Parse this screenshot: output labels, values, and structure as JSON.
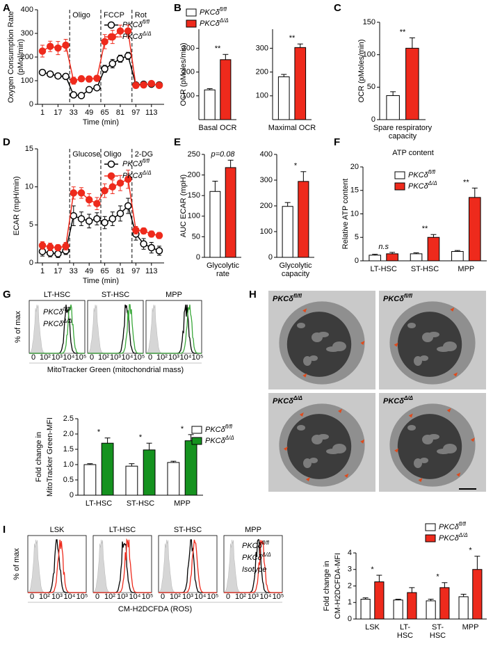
{
  "chart_data": [
    {
      "type": "line",
      "panel": "A",
      "ylabel": [
        "Oxygen Consumption Rate",
        "(pMol/min)"
      ],
      "xlabel": "Time (min)",
      "x": [
        1,
        9,
        17,
        25,
        33,
        41,
        49,
        57,
        65,
        73,
        81,
        89,
        97,
        105,
        113,
        121
      ],
      "xlim": [
        -4,
        126
      ],
      "xticks": [
        1,
        17,
        33,
        49,
        65,
        81,
        97,
        113
      ],
      "ylim": [
        0,
        400
      ],
      "yticks": [
        0,
        100,
        200,
        300,
        400
      ],
      "events": [
        {
          "x": 29,
          "label": "Oligo"
        },
        {
          "x": 61,
          "label": "FCCP"
        },
        {
          "x": 93,
          "label": "Rot"
        }
      ],
      "series": [
        {
          "name": "PKCδ",
          "name_sup": "fl/fl",
          "color": "#000000",
          "marker": "open-circle",
          "values": [
            135,
            128,
            120,
            118,
            40,
            37,
            62,
            70,
            150,
            172,
            193,
            205,
            82,
            85,
            85,
            82
          ],
          "errors": [
            10,
            8,
            8,
            8,
            6,
            6,
            10,
            10,
            15,
            18,
            15,
            15,
            8,
            8,
            8,
            8
          ]
        },
        {
          "name": "PKCδ",
          "name_sup": "Δ/Δ",
          "color": "#ee2a1c",
          "marker": "filled-circle",
          "values": [
            225,
            245,
            238,
            250,
            100,
            108,
            107,
            110,
            265,
            285,
            310,
            310,
            80,
            82,
            88,
            80
          ],
          "errors": [
            25,
            22,
            28,
            25,
            15,
            12,
            12,
            12,
            30,
            28,
            25,
            25,
            12,
            10,
            8,
            10
          ]
        }
      ]
    },
    {
      "type": "bar",
      "panel": "B",
      "ylabel": "OCR (pMoles/min)",
      "categories": [
        "Basal OCR"
      ],
      "ylim": [
        0,
        380
      ],
      "yticks": [
        100,
        200,
        300
      ],
      "series": [
        {
          "name": "PKCδ",
          "name_sup": "fl/fl",
          "color": "#ffffff",
          "values": [
            125
          ],
          "errors": [
            5
          ]
        },
        {
          "name": "PKCδ",
          "name_sup": "Δ/Δ",
          "color": "#ee2a1c",
          "values": [
            252
          ],
          "errors": [
            22
          ]
        }
      ],
      "annotations": [
        "**"
      ]
    },
    {
      "type": "bar",
      "categories": [
        "Maximal OCR"
      ],
      "ylim": [
        0,
        380
      ],
      "yticks": [
        100,
        200,
        300
      ],
      "series": [
        {
          "color": "#ffffff",
          "values": [
            180
          ],
          "errors": [
            10
          ]
        },
        {
          "color": "#ee2a1c",
          "values": [
            303
          ],
          "errors": [
            15
          ]
        }
      ],
      "annotations": [
        "**"
      ]
    },
    {
      "type": "bar",
      "panel": "C",
      "ylabel": "OCR (pMoles/min)",
      "categories": [
        [
          "Spare respiratory",
          "capacity"
        ]
      ],
      "ylim": [
        0,
        150
      ],
      "yticks": [
        0,
        50,
        100,
        150
      ],
      "series": [
        {
          "color": "#ffffff",
          "values": [
            37
          ],
          "errors": [
            6
          ]
        },
        {
          "color": "#ee2a1c",
          "values": [
            110
          ],
          "errors": [
            16
          ]
        }
      ],
      "annotations": [
        "**"
      ]
    },
    {
      "type": "line",
      "panel": "D",
      "ylabel": [
        "ECAR (mpH/min)"
      ],
      "xlabel": "Time (min)",
      "x": [
        1,
        9,
        17,
        25,
        33,
        41,
        49,
        57,
        65,
        73,
        81,
        89,
        97,
        105,
        113,
        121
      ],
      "xlim": [
        -4,
        126
      ],
      "xticks": [
        1,
        17,
        33,
        49,
        65,
        81,
        97,
        113
      ],
      "ylim": [
        0,
        15
      ],
      "yticks": [
        0,
        5,
        10,
        15
      ],
      "events": [
        {
          "x": 29,
          "label": "Glucose"
        },
        {
          "x": 61,
          "label": "Oligo"
        },
        {
          "x": 93,
          "label": "2-DG"
        }
      ],
      "series": [
        {
          "name": "PKCδ",
          "name_sup": "fl/fl",
          "color": "#000000",
          "marker": "open-circle",
          "values": [
            1.5,
            1.3,
            1.2,
            1.6,
            6.2,
            5.8,
            5.5,
            5.8,
            5.3,
            5.8,
            6.5,
            7.5,
            3.8,
            2.5,
            2.0,
            1.6
          ],
          "errors": [
            0.6,
            0.5,
            0.5,
            0.5,
            1.3,
            0.9,
            0.9,
            0.8,
            0.8,
            0.9,
            1.0,
            1.0,
            0.8,
            0.7,
            0.7,
            0.6
          ]
        },
        {
          "name": "PKCδ",
          "name_sup": "Δ/Δ",
          "color": "#ee2a1c",
          "marker": "filled-circle",
          "values": [
            2.3,
            2.1,
            2.0,
            2.2,
            9.2,
            9.2,
            8.3,
            7.8,
            9.5,
            10.0,
            10.5,
            11.0,
            4.3,
            4.2,
            3.8,
            3.6
          ],
          "errors": [
            0.5,
            0.5,
            0.4,
            0.5,
            0.8,
            0.7,
            0.8,
            0.8,
            0.9,
            0.9,
            1.0,
            1.2,
            0.5,
            0.4,
            0.4,
            0.4
          ]
        }
      ]
    },
    {
      "type": "bar",
      "panel": "E",
      "ylabel": "AUC ECAR (mpH)",
      "categories": [
        [
          "Glycolytic",
          "rate"
        ]
      ],
      "ylim": [
        0,
        250
      ],
      "yticks": [
        0,
        50,
        100,
        150,
        200,
        250
      ],
      "series": [
        {
          "color": "#ffffff",
          "values": [
            160
          ],
          "errors": [
            25
          ]
        },
        {
          "color": "#ee2a1c",
          "values": [
            218
          ],
          "errors": [
            18
          ]
        }
      ],
      "annotations": [
        "p=0.08"
      ]
    },
    {
      "type": "bar",
      "categories": [
        [
          "Glycolytic",
          "capacity"
        ]
      ],
      "ylim": [
        0,
        400
      ],
      "yticks": [
        0,
        100,
        200,
        300,
        400
      ],
      "series": [
        {
          "color": "#ffffff",
          "values": [
            198
          ],
          "errors": [
            15
          ]
        },
        {
          "color": "#ee2a1c",
          "values": [
            295
          ],
          "errors": [
            38
          ]
        }
      ],
      "annotations": [
        "*"
      ]
    },
    {
      "type": "bar",
      "panel": "F",
      "title": "ATP content",
      "ylabel": "Relative ATP content",
      "categories": [
        "LT-HSC",
        "ST-HSC",
        "MPP"
      ],
      "ylim": [
        0,
        20
      ],
      "yticks": [
        0,
        5,
        10,
        15,
        20
      ],
      "series": [
        {
          "name": "PKCδ",
          "name_sup": "fl/fl",
          "color": "#ffffff",
          "values": [
            1.2,
            1.5,
            2.0
          ],
          "errors": [
            0.2,
            0.2,
            0.2
          ]
        },
        {
          "name": "PKCδ",
          "name_sup": "Δ/Δ",
          "color": "#ee2a1c",
          "values": [
            1.5,
            5.0,
            13.5
          ],
          "errors": [
            0.3,
            0.6,
            2.0
          ]
        }
      ],
      "annotations": [
        "n.s",
        "**",
        "**"
      ]
    },
    {
      "type": "flow",
      "panel": "G",
      "ylabel": "% of max",
      "xlabel": "MitoTracker Green (mitochondrial mass)",
      "panels": [
        "LT-HSC",
        "ST-HSC",
        "MPP"
      ],
      "axis_labels": [
        "0",
        "10²",
        "10³",
        "10⁴",
        "10⁵"
      ],
      "series": [
        {
          "name": "PKCδ",
          "name_sup": "fl/fl",
          "color": "#000000"
        },
        {
          "name": "PKCδ",
          "name_sup": "Δ/Δ",
          "color": "#3aa83a"
        }
      ]
    },
    {
      "type": "bar",
      "ylabel": [
        "Fold change in",
        "MitoTracker Green-MFI"
      ],
      "categories": [
        "LT-HSC",
        "ST-HSC",
        "MPP"
      ],
      "ylim": [
        0,
        2.5
      ],
      "yticks": [
        0,
        0.5,
        {
          "value": 1,
          "label": "1.0"
        },
        1.5,
        {
          "value": 2,
          "label": "2.0"
        },
        2.5
      ],
      "series": [
        {
          "name": "PKCδ",
          "name_sup": "fl/fl",
          "color": "#ffffff",
          "values": [
            1.0,
            0.95,
            1.07
          ],
          "errors": [
            0.03,
            0.08,
            0.04
          ]
        },
        {
          "name": "PKCδ",
          "name_sup": "Δ/Δ",
          "color": "#15921f",
          "values": [
            1.7,
            1.48,
            1.78
          ],
          "errors": [
            0.17,
            0.22,
            0.2
          ]
        }
      ],
      "annotations": [
        "*",
        "*",
        "*"
      ]
    },
    {
      "type": "image",
      "panel": "H",
      "images": [
        {
          "name": "PKCδ",
          "name_sup": "fl/fl"
        },
        {
          "name": "PKCδ",
          "name_sup": "fl/fl"
        },
        {
          "name": "PKCδ",
          "name_sup": "Δ/Δ"
        },
        {
          "name": "PKCδ",
          "name_sup": "Δ/Δ"
        }
      ]
    },
    {
      "type": "flow",
      "panel": "I",
      "ylabel": "% of max",
      "xlabel": "CM-H2DCFDA (ROS)",
      "panels": [
        "LSK",
        "LT-HSC",
        "ST-HSC",
        "MPP"
      ],
      "axis_labels": [
        "0",
        "10²",
        "10³",
        "10⁴",
        "10⁵"
      ],
      "series": [
        {
          "name": "PKCδ",
          "name_sup": "fl/fl",
          "color": "#000000"
        },
        {
          "name": "PKCδ",
          "name_sup": "Δ/Δ",
          "color": "#ee2a1c"
        },
        {
          "name": "Isotype",
          "color": "#8c8c8c"
        }
      ]
    },
    {
      "type": "bar",
      "ylabel": [
        "Fold change in",
        "CM-H2DCFDA-MFI"
      ],
      "categories": [
        "LSK",
        [
          "LT-",
          "HSC"
        ],
        [
          "ST-",
          "HSC"
        ],
        "MPP"
      ],
      "ylim": [
        0,
        4
      ],
      "yticks": [
        0,
        1,
        2,
        3,
        4
      ],
      "series": [
        {
          "name": "PKCδ",
          "name_sup": "fl/fl",
          "color": "#ffffff",
          "values": [
            1.2,
            1.15,
            1.1,
            1.35
          ],
          "errors": [
            0.08,
            0.05,
            0.1,
            0.15
          ]
        },
        {
          "name": "PKCδ",
          "name_sup": "Δ/Δ",
          "color": "#ee2a1c",
          "values": [
            2.25,
            1.6,
            1.9,
            3.0
          ],
          "errors": [
            0.4,
            0.3,
            0.3,
            0.8
          ]
        }
      ],
      "annotations": [
        "*",
        null,
        "*",
        "*"
      ]
    }
  ]
}
